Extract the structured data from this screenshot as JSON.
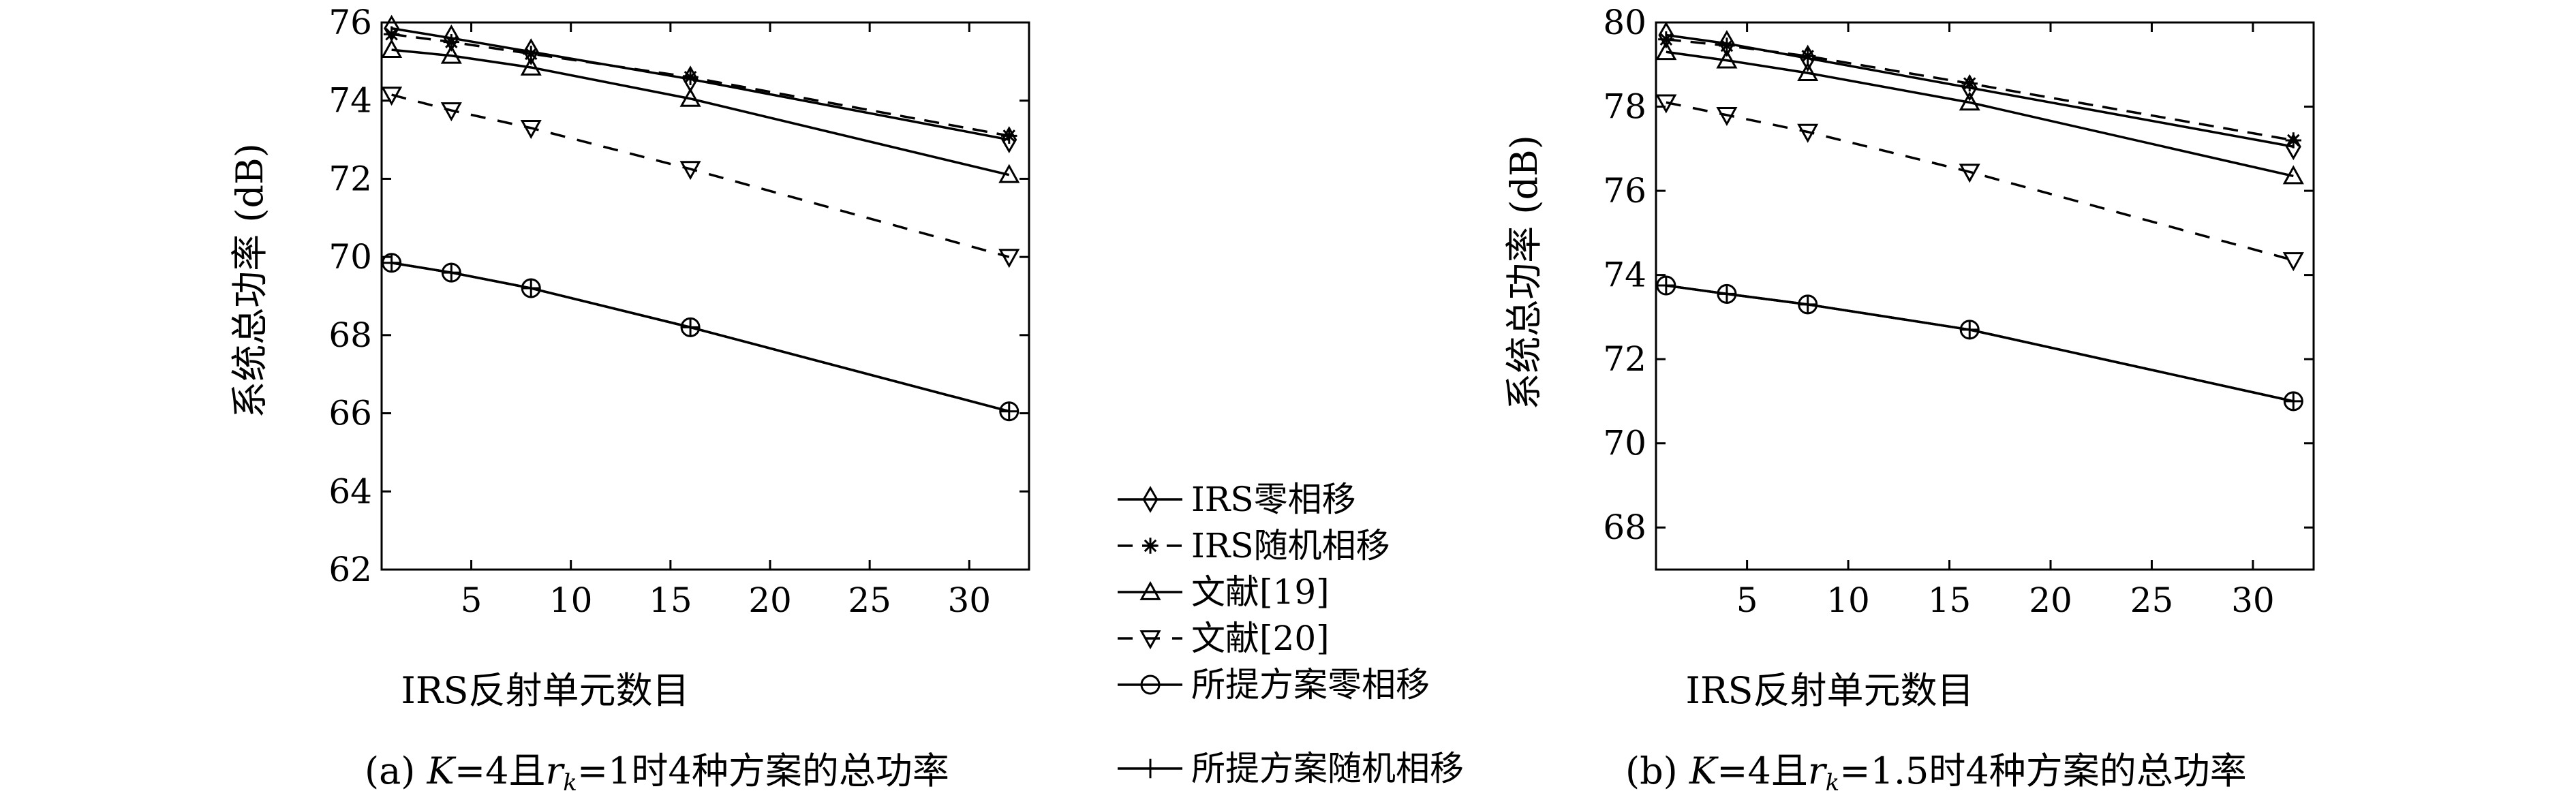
{
  "legend": [
    "IRS零相移",
    "IRS随机相移",
    "文献[19]",
    "文献[20]",
    "所提方案零相移",
    "所提方案随机相移"
  ],
  "series_styles": [
    {
      "dash": "",
      "marker": "diamond"
    },
    {
      "dash": "22,14",
      "marker": "star"
    },
    {
      "dash": "",
      "marker": "triangle-up"
    },
    {
      "dash": "22,18",
      "marker": "triangle-down"
    },
    {
      "dash": "",
      "marker": "circle"
    },
    {
      "dash": "",
      "marker": "plus"
    }
  ],
  "chart_data": [
    {
      "type": "line",
      "caption_parts": [
        "(a) ",
        "K",
        "=4且",
        "r",
        "k",
        "=1时4种方案的总功率"
      ],
      "xlabel": "IRS反射单元数目",
      "ylabel": "系统总功率 (dB)",
      "xlim": [
        0.5,
        33
      ],
      "ylim": [
        62,
        76
      ],
      "xticks": [
        5,
        10,
        15,
        20,
        25,
        30
      ],
      "yticks": [
        62,
        64,
        66,
        68,
        70,
        72,
        74,
        76
      ],
      "x": [
        1,
        4,
        8,
        16,
        32
      ],
      "series": [
        {
          "name": "IRS零相移",
          "values": [
            75.85,
            75.6,
            75.25,
            74.55,
            73.0
          ]
        },
        {
          "name": "IRS随机相移",
          "values": [
            75.7,
            75.5,
            75.2,
            74.6,
            73.1
          ]
        },
        {
          "name": "文献[19]",
          "values": [
            75.3,
            75.15,
            74.85,
            74.05,
            72.1
          ]
        },
        {
          "name": "文献[20]",
          "values": [
            74.15,
            73.75,
            73.3,
            72.25,
            70.0
          ]
        },
        {
          "name": "所提方案零相移",
          "values": [
            69.85,
            69.6,
            69.2,
            68.2,
            66.05
          ]
        },
        {
          "name": "所提方案随机相移",
          "values": [
            69.85,
            69.6,
            69.2,
            68.2,
            66.05
          ]
        }
      ]
    },
    {
      "type": "line",
      "caption_parts": [
        "(b) ",
        "K",
        "=4且",
        "r",
        "k",
        "=1.5时4种方案的总功率"
      ],
      "xlabel": "IRS反射单元数目",
      "ylabel": "系统总功率 (dB)",
      "xlim": [
        0.5,
        33
      ],
      "ylim": [
        67,
        80
      ],
      "xticks": [
        5,
        10,
        15,
        20,
        25,
        30
      ],
      "yticks": [
        68,
        70,
        72,
        74,
        76,
        78,
        80
      ],
      "x": [
        1,
        4,
        8,
        16,
        32
      ],
      "series": [
        {
          "name": "IRS零相移",
          "values": [
            79.7,
            79.5,
            79.15,
            78.45,
            77.05
          ]
        },
        {
          "name": "IRS随机相移",
          "values": [
            79.6,
            79.45,
            79.2,
            78.55,
            77.2
          ]
        },
        {
          "name": "文献[19]",
          "values": [
            79.3,
            79.1,
            78.8,
            78.1,
            76.35
          ]
        },
        {
          "name": "文献[20]",
          "values": [
            78.1,
            77.8,
            77.4,
            76.45,
            74.35
          ]
        },
        {
          "name": "所提方案零相移",
          "values": [
            73.75,
            73.55,
            73.3,
            72.7,
            71.0
          ]
        },
        {
          "name": "所提方案随机相移",
          "values": [
            73.75,
            73.55,
            73.3,
            72.7,
            71.0
          ]
        }
      ]
    }
  ]
}
